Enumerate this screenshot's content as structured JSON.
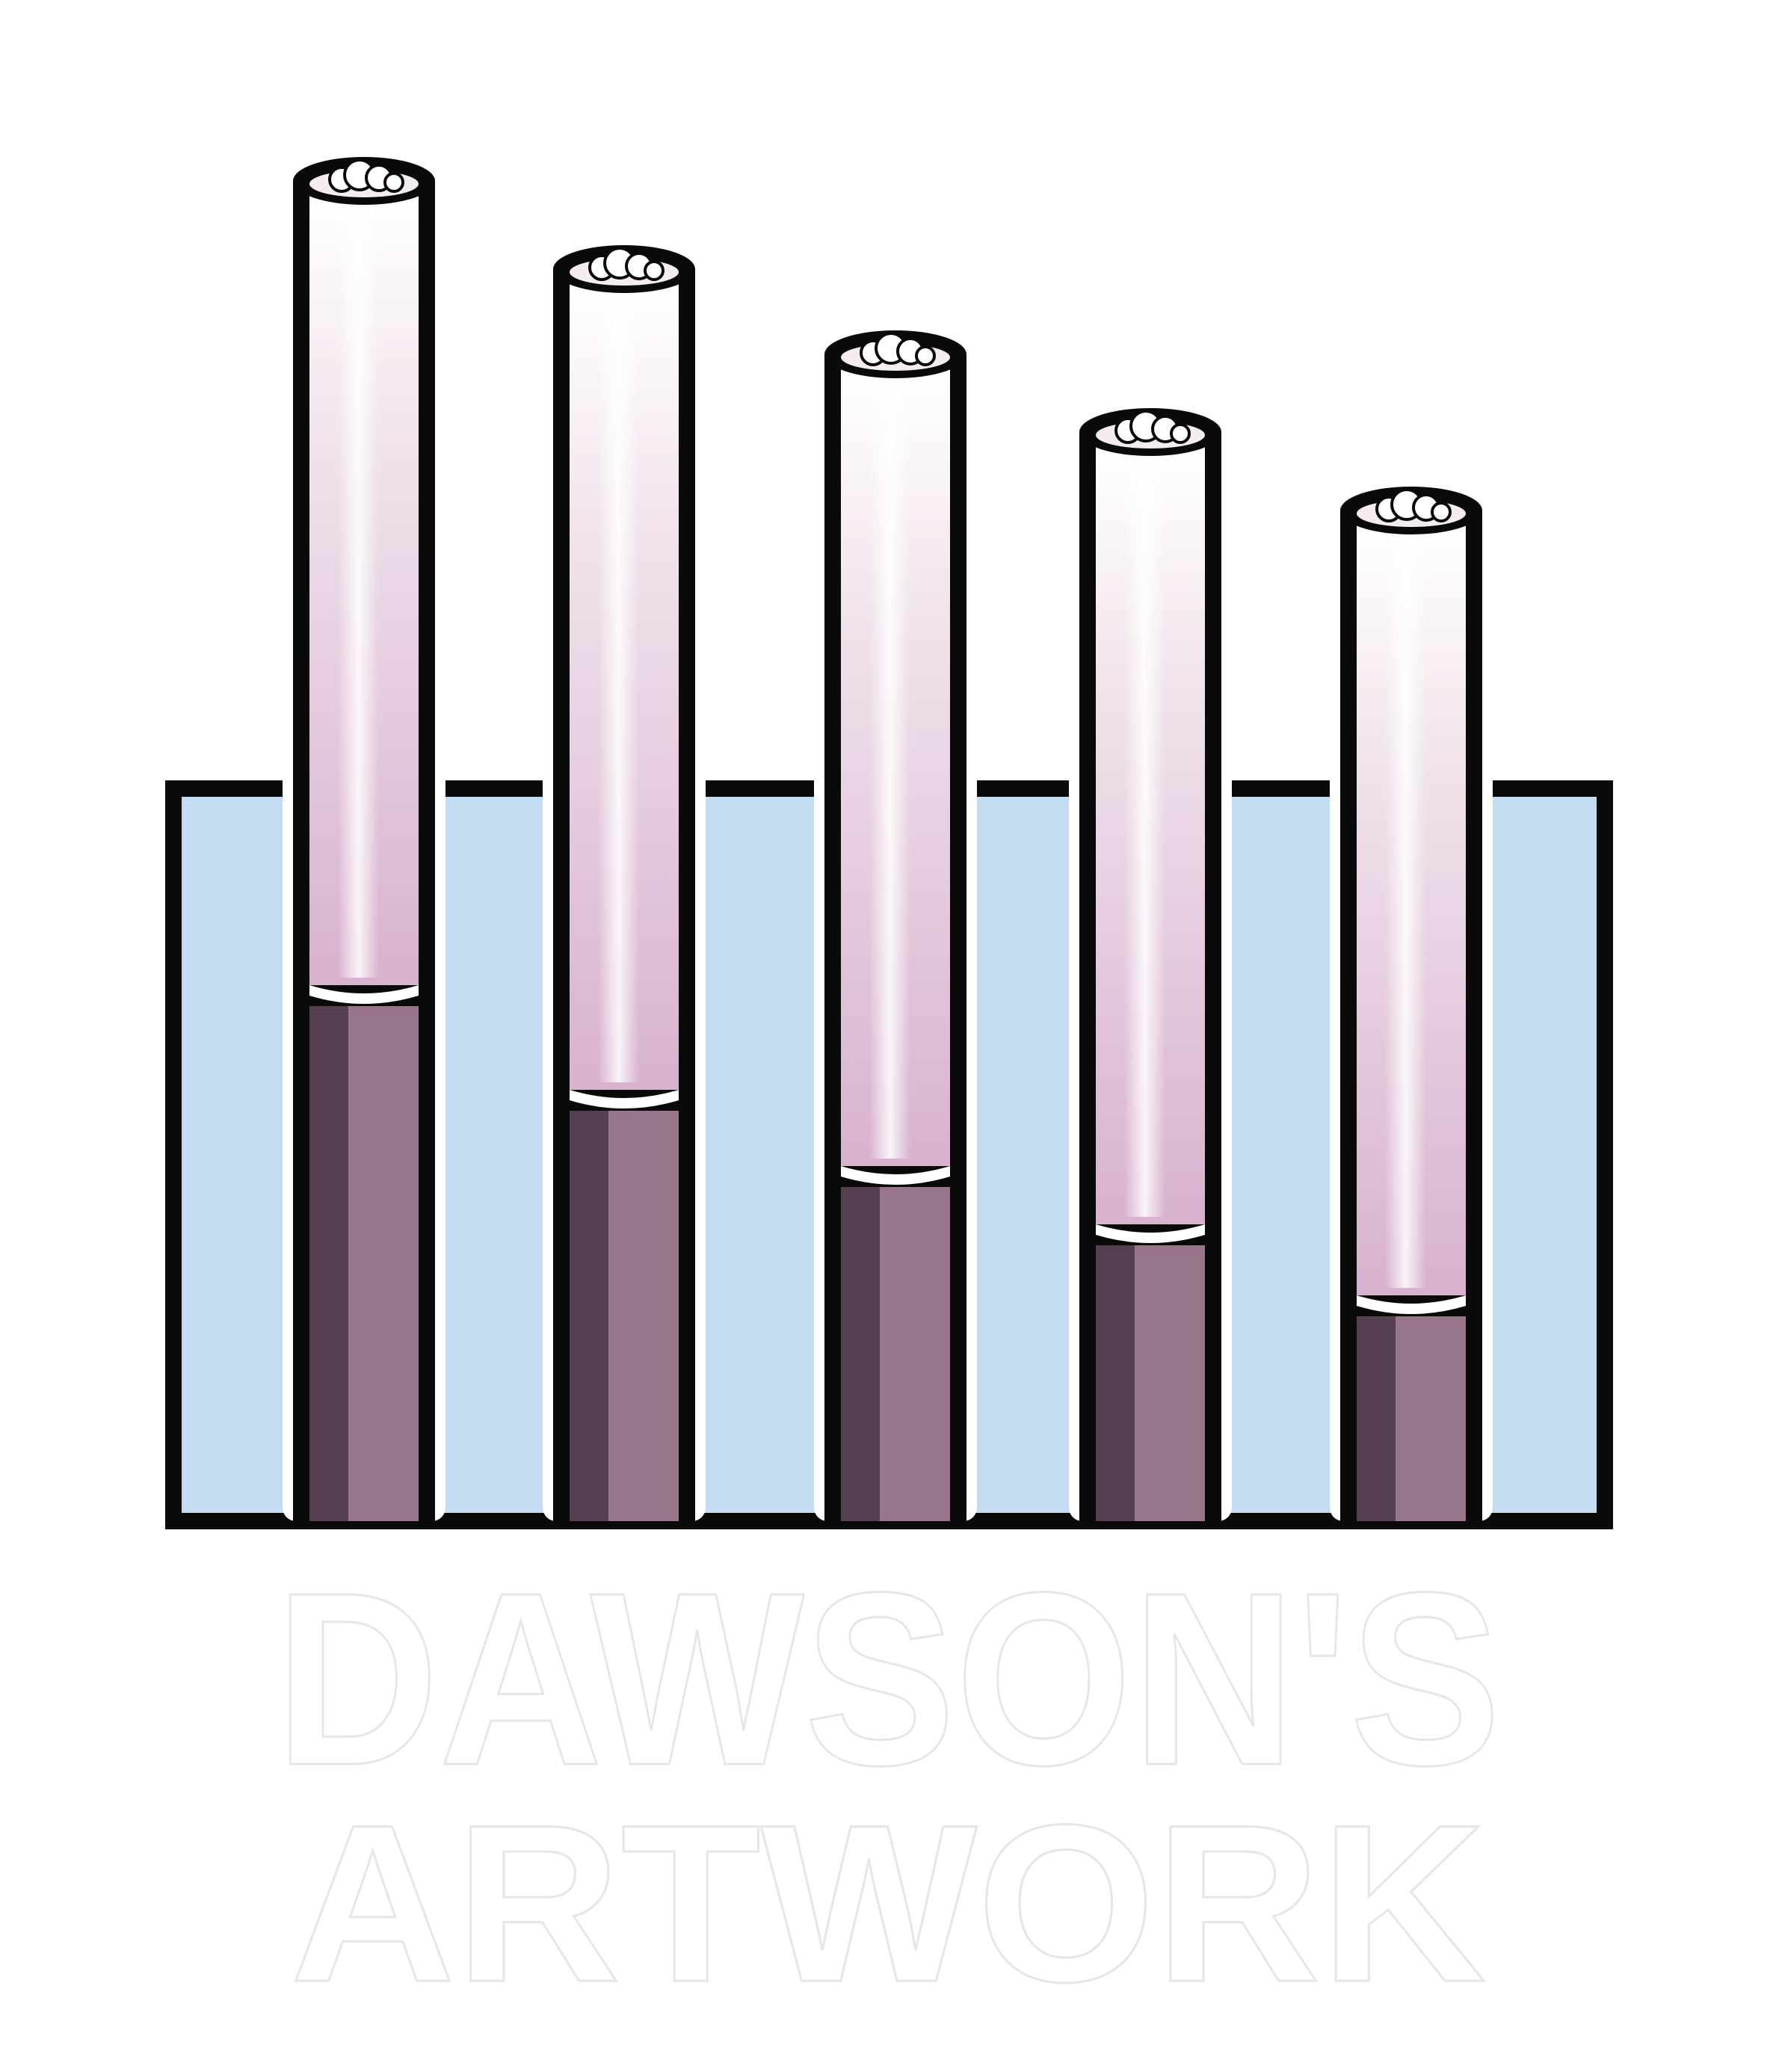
{
  "logo": {
    "line1": "DAWSON'S",
    "line2": "ARTWORK"
  },
  "colors": {
    "water": "#c3dcf1",
    "outline": "#0a0a0a",
    "liquid_light": "#977689",
    "liquid_dark": "#55404f",
    "paper_top": "#ffffff",
    "paper_tint": "#d8b2cf"
  },
  "icons": {
    "cigarette": "cigarette-icon",
    "water_tank": "water-tank-icon"
  }
}
